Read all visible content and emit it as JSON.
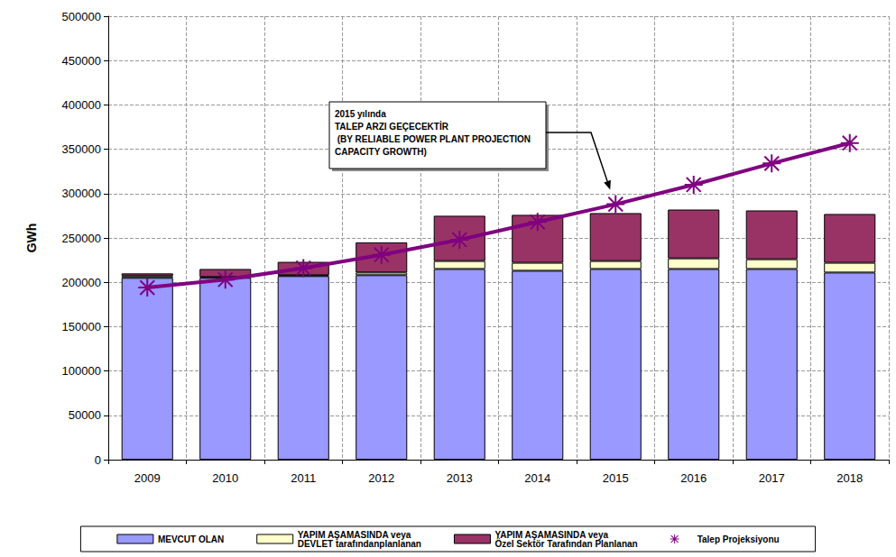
{
  "chart_data": {
    "type": "bar",
    "stacked": true,
    "grid": true,
    "legend": "bottom",
    "y_label": "GWh",
    "categories": [
      "2009",
      "2010",
      "2011",
      "2012",
      "2013",
      "2014",
      "2015",
      "2016",
      "2017",
      "2018"
    ],
    "ylim": [
      0,
      500000
    ],
    "yticks": [
      0,
      50000,
      100000,
      150000,
      200000,
      250000,
      300000,
      350000,
      400000,
      450000,
      500000
    ],
    "series": [
      {
        "name": "MEVCUT OLAN",
        "type": "bar",
        "color": "#9999ff",
        "values": [
          205000,
          205000,
          207000,
          208000,
          215000,
          213000,
          215000,
          215000,
          215000,
          211000
        ]
      },
      {
        "name": "YAPIM AŞAMASINDA veya\nDEVLET tarafındanplanlanan",
        "type": "bar",
        "color": "#ffffcc",
        "values": [
          2000,
          1000,
          1000,
          3000,
          9000,
          9000,
          9000,
          12000,
          11000,
          11000
        ]
      },
      {
        "name": "YAPIM AŞAMASINDA veya\nÖzel Sektör Tarafından Planlanan",
        "type": "bar",
        "color": "#993366",
        "values": [
          3000,
          9000,
          15000,
          34000,
          51000,
          54000,
          54000,
          55000,
          55000,
          55000
        ]
      },
      {
        "name": "Talep Projeksiyonu",
        "type": "line",
        "color": "#800080",
        "marker": "asterisk",
        "values": [
          194000,
          203000,
          216000,
          231000,
          248000,
          268000,
          288000,
          310000,
          334000,
          357000
        ]
      }
    ],
    "annotation": {
      "text": "2015 yılında\nTALEP ARZI GEÇECEKTİR\n (BY RELIABLE POWER PLANT PROJECTION\nCAPACITY GROWTH)",
      "points_to": "2015"
    }
  }
}
